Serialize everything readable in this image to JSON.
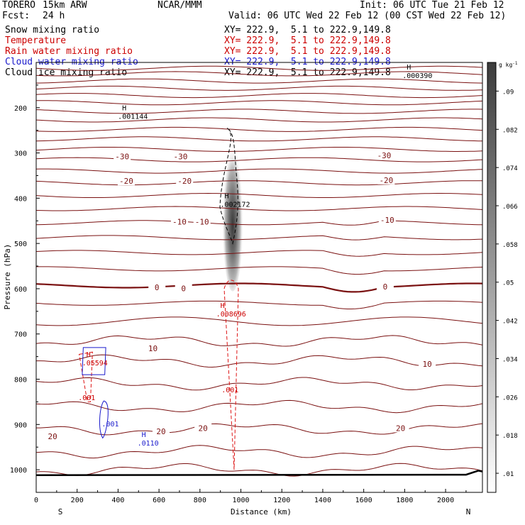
{
  "header": {
    "model": "TORERO",
    "res": "15km ARW",
    "center": "NCAR/MMM",
    "init": "Init: 06 UTC Tue 21 Feb 12",
    "fcst_label": "Fcst:",
    "fcst_value": "24 h",
    "valid": "Valid: 06 UTC Wed 22 Feb 12 (00 CST Wed 22 Feb 12)"
  },
  "fields": [
    {
      "name": "Snow mixing ratio",
      "xy": "XY= 222.9,  5.1 to 222.9,149.8",
      "color": "#000000"
    },
    {
      "name": "Temperature",
      "xy": "XY= 222.9,  5.1 to 222.9,149.8",
      "color": "#cc0000"
    },
    {
      "name": "Rain water mixing ratio",
      "xy": "XY= 222.9,  5.1 to 222.9,149.8",
      "color": "#cc0000"
    },
    {
      "name": "Cloud water mixing ratio",
      "xy": "XY= 222.9,  5.1 to 222.9,149.8",
      "color": "#1a1acc"
    },
    {
      "name": "Cloud ice mixing ratio",
      "xy": "XY= 222.9,  5.1 to 222.9,149.8",
      "color": "#000000"
    }
  ],
  "colors": {
    "temperature": "#7a1010",
    "rain": "#dd1111",
    "cloud_water": "#1a1acc",
    "snow": "#000000"
  },
  "chart_data": {
    "type": "contour-cross-section",
    "xlabel": "Distance (km)",
    "ylabel": "Pressure (hPa)",
    "xlim": [
      0,
      2180
    ],
    "ylim": [
      1050,
      100
    ],
    "x_ticks": [
      0,
      200,
      400,
      600,
      800,
      1000,
      1200,
      1400,
      1600,
      1800,
      2000
    ],
    "y_ticks": [
      200,
      300,
      400,
      500,
      600,
      700,
      800,
      900,
      1000
    ],
    "x_end_labels": {
      "left": "S",
      "right": "N"
    },
    "colorbar": {
      "unit": "g kg",
      "unit_exp": "-1",
      "ticks": [
        ".09",
        ".082",
        ".074",
        ".066",
        ".058",
        ".05",
        ".042",
        ".034",
        ".026",
        ".018",
        ".01"
      ],
      "tick_values": [
        0.09,
        0.082,
        0.074,
        0.066,
        0.058,
        0.05,
        0.042,
        0.034,
        0.026,
        0.018,
        0.01
      ],
      "range": [
        0.006,
        0.096
      ]
    },
    "isotherm_pressures": [
      113,
      125,
      141,
      157,
      173,
      189,
      208,
      227,
      248,
      269,
      292,
      315,
      340,
      366,
      394,
      423,
      454,
      487,
      520,
      556,
      593,
      632,
      672,
      716,
      760,
      810,
      860,
      910,
      960,
      1000
    ],
    "zero_isotherm_pressure": 593,
    "temperature_labels": [
      {
        "text": "-30",
        "x": 420,
        "p": 308
      },
      {
        "text": "-30",
        "x": 705,
        "p": 308
      },
      {
        "text": "-30",
        "x": 1700,
        "p": 305
      },
      {
        "text": "-20",
        "x": 440,
        "p": 362
      },
      {
        "text": "-20",
        "x": 725,
        "p": 362
      },
      {
        "text": "-20",
        "x": 1710,
        "p": 360
      },
      {
        "text": "-10",
        "x": 700,
        "p": 452
      },
      {
        "text": "-10",
        "x": 810,
        "p": 452
      },
      {
        "text": "-10",
        "x": 1715,
        "p": 448
      },
      {
        "text": "0",
        "x": 590,
        "p": 597
      },
      {
        "text": "0",
        "x": 720,
        "p": 599
      },
      {
        "text": "0",
        "x": 1705,
        "p": 595
      },
      {
        "text": "10",
        "x": 570,
        "p": 732
      },
      {
        "text": "10",
        "x": 1910,
        "p": 766
      },
      {
        "text": "20",
        "x": 80,
        "p": 926
      },
      {
        "text": "20",
        "x": 610,
        "p": 915
      },
      {
        "text": "20",
        "x": 815,
        "p": 908
      },
      {
        "text": "20",
        "x": 1780,
        "p": 908
      }
    ],
    "extrema": [
      {
        "mark": "H",
        "value": ".001144",
        "x": 420,
        "p": 218,
        "color": "#000000"
      },
      {
        "mark": "H",
        "value": ".002172",
        "x": 920,
        "p": 413,
        "color": "#000000"
      },
      {
        "mark": "H",
        "value": ".000390",
        "x": 1810,
        "p": 128,
        "color": "#000000"
      },
      {
        "mark": "H",
        "value": ".008696",
        "x": 900,
        "p": 655,
        "color": "#cc0000"
      },
      {
        "mark": "H",
        "value": ".05594",
        "x": 245,
        "p": 763,
        "color": "#cc0000"
      },
      {
        "mark": "H",
        "value": ".0110",
        "x": 515,
        "p": 940,
        "color": "#1a1acc"
      }
    ],
    "contour_labels": [
      {
        "text": ".001",
        "x": 940,
        "p": 823,
        "color": "#cc0000"
      },
      {
        "text": ".001",
        "x": 240,
        "p": 840,
        "color": "#cc0000"
      },
      {
        "text": ".001",
        "x": 355,
        "p": 898,
        "color": "#1a1acc"
      }
    ],
    "snow_shading": {
      "x_center": 960,
      "p_top": 240,
      "p_bottom": 590,
      "max_value": 0.09
    }
  }
}
